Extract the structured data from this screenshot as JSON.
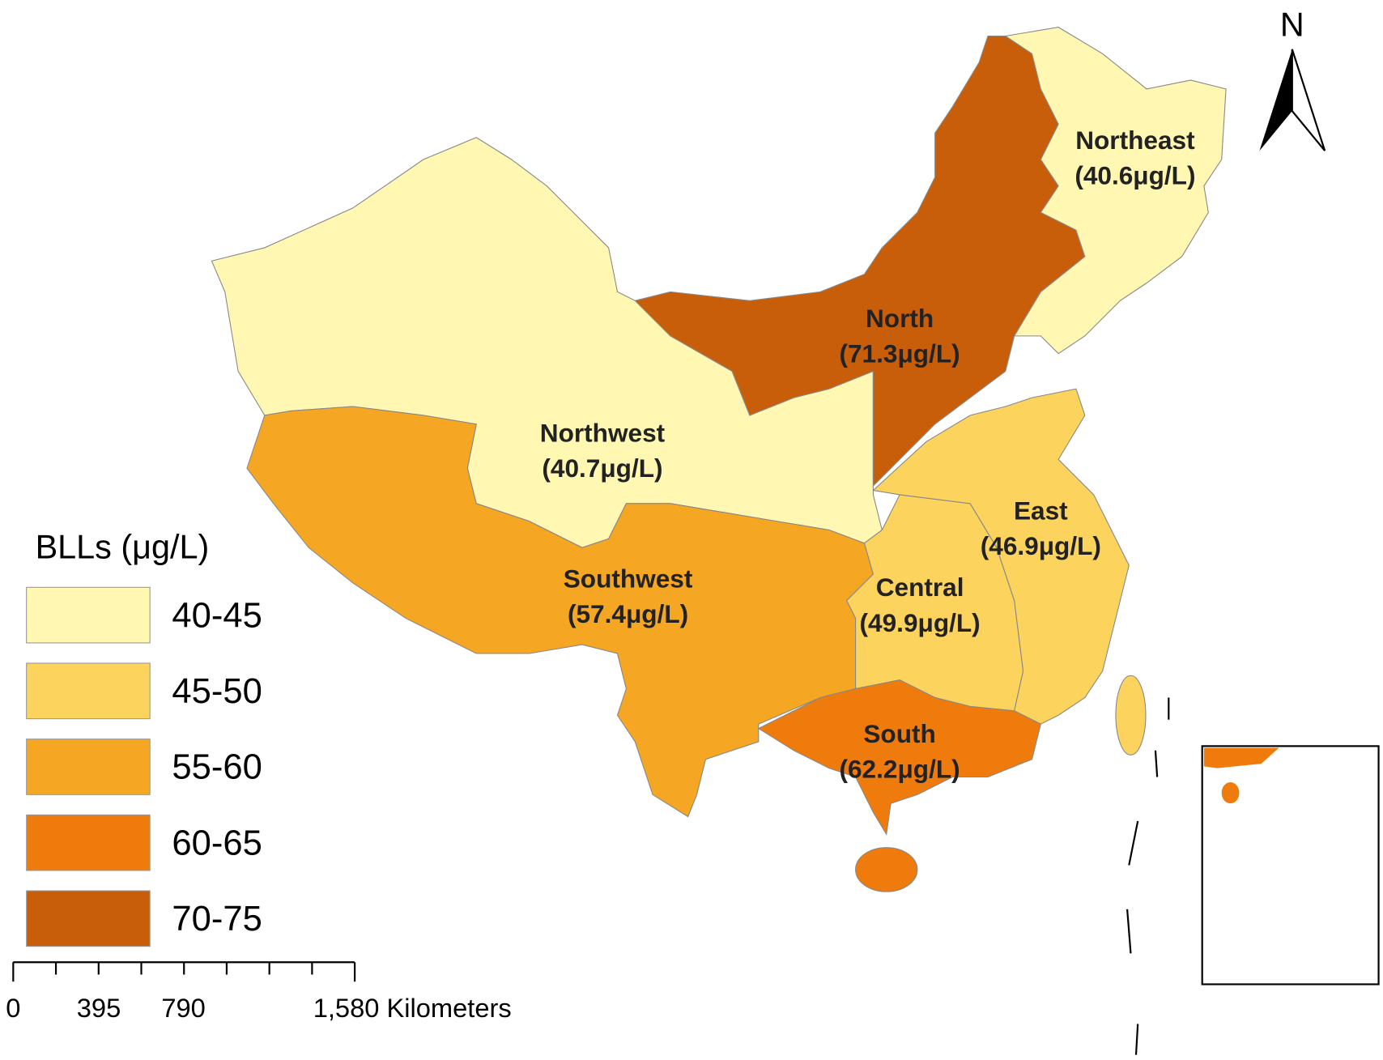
{
  "north_arrow": "N",
  "regions": [
    {
      "name": "Northeast",
      "value_label": "(40.6μg/L)",
      "color": "#fff7b2"
    },
    {
      "name": "North",
      "value_label": "(71.3μg/L)",
      "color": "#c85e0a"
    },
    {
      "name": "Northwest",
      "value_label": "(40.7μg/L)",
      "color": "#fff7b2"
    },
    {
      "name": "East",
      "value_label": "(46.9μg/L)",
      "color": "#fcd35c"
    },
    {
      "name": "Southwest",
      "value_label": "(57.4μg/L)",
      "color": "#f5a623"
    },
    {
      "name": "Central",
      "value_label": "(49.9μg/L)",
      "color": "#fcd35c"
    },
    {
      "name": "South",
      "value_label": "(62.2μg/L)",
      "color": "#ee7b0c"
    }
  ],
  "legend": {
    "title": "BLLs (μg/L)",
    "classes": [
      {
        "label": "40-45",
        "color": "#fff7b2"
      },
      {
        "label": "45-50",
        "color": "#fcd35c"
      },
      {
        "label": "55-60",
        "color": "#f5a623"
      },
      {
        "label": "60-65",
        "color": "#ee7b0c"
      },
      {
        "label": "70-75",
        "color": "#c85e0a"
      }
    ]
  },
  "scale_bar": {
    "labels": [
      "0",
      "395",
      "790",
      "1,580 Kilometers"
    ]
  }
}
